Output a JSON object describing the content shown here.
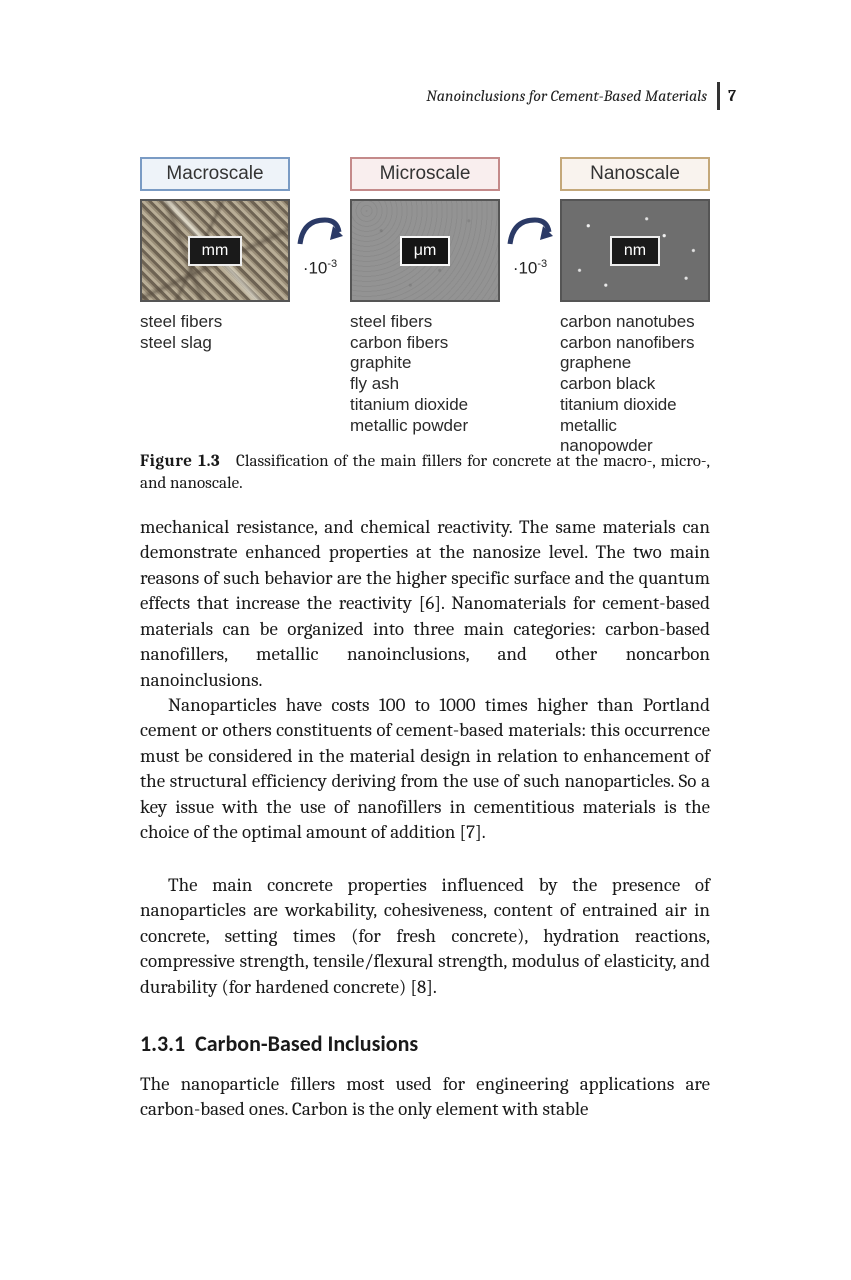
{
  "header": {
    "running_title": "Nanoinclusions for Cement-Based Materials",
    "page_number": "7"
  },
  "figure": {
    "scales": [
      {
        "label": "Macroscale",
        "label_border": "#7a9bc4",
        "label_bg": "#eef3f9",
        "unit": "mm",
        "materials": "steel fibers\nsteel slag"
      },
      {
        "label": "Microscale",
        "label_border": "#c48a8a",
        "label_bg": "#f9eeee",
        "unit": "μm",
        "materials": "steel fibers\ncarbon fibers\ngraphite\nfly ash\ntitanium dioxide\nmetallic powder"
      },
      {
        "label": "Nanoscale",
        "label_border": "#c4a87a",
        "label_bg": "#f9f3ee",
        "unit": "nm",
        "materials": "carbon nanotubes\ncarbon nanofibers\ngraphene\ncarbon black\ntitanium dioxide\nmetallic nanopowder"
      }
    ],
    "arrow_factor_base": "·10",
    "arrow_factor_exp": "-3",
    "arrow_color": "#2b3a66",
    "caption_label": "Figure 1.3",
    "caption_text": "Classification of the main fillers for concrete at the macro-, micro-, and nanoscale."
  },
  "paragraphs": {
    "p1": "mechanical resistance, and chemical reactivity. The same materials can demonstrate enhanced properties at the nanosize level. The two main reasons of such behavior are the higher specific surface and the quantum effects that increase the reactivity [6]. Nanomaterials for cement-based materials can be organized into three main categories: carbon-based nanofillers, metallic nanoinclusions, and other noncarbon nanoinclusions.",
    "p2": "Nanoparticles have costs 100 to 1000 times higher than Portland cement or others constituents of cement-based materials: this occurrence must be considered in the material design in relation to enhancement of the structural efficiency deriving from the use of such nanoparticles. So a key issue with the use of nanofillers in cementitious materials is the choice of the optimal amount of addition [7].",
    "p3": "The main concrete properties influenced by the presence of nanoparticles are workability, cohesiveness, content of entrained air in concrete, setting times (for fresh concrete), hydration reactions, compressive strength, tensile/flexural strength, modulus of elasticity, and durability (for hardened concrete) [8].",
    "p4": "The nanoparticle fillers most used for engineering applications are carbon-based ones. Carbon is the only element with stable"
  },
  "section": {
    "number": "1.3.1",
    "title": "Carbon-Based Inclusions"
  }
}
